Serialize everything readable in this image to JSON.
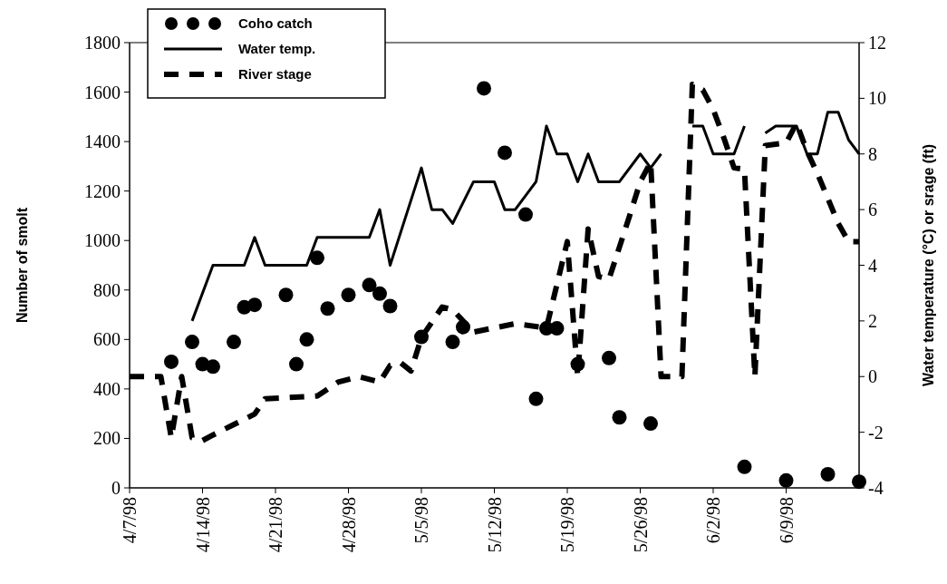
{
  "chart_data": {
    "type": "line",
    "ylabel": "Number of smolt",
    "y2label": "Water temperature (°C) or srage (ft)",
    "xlim": [
      "1998-04-07",
      "1998-06-16"
    ],
    "xticks": [
      {
        "value": "1998-04-07",
        "label": "4/7/98"
      },
      {
        "value": "1998-04-14",
        "label": "4/14/98"
      },
      {
        "value": "1998-04-21",
        "label": "4/21/98"
      },
      {
        "value": "1998-04-28",
        "label": "4/28/98"
      },
      {
        "value": "1998-05-05",
        "label": "5/5/98"
      },
      {
        "value": "1998-05-12",
        "label": "5/12/98"
      },
      {
        "value": "1998-05-19",
        "label": "5/19/98"
      },
      {
        "value": "1998-05-26",
        "label": "5/26/98"
      },
      {
        "value": "1998-06-02",
        "label": "6/2/98"
      },
      {
        "value": "1998-06-09",
        "label": "6/9/98"
      }
    ],
    "ylim": [
      0,
      1800
    ],
    "yticks": [
      0,
      200,
      400,
      600,
      800,
      1000,
      1200,
      1400,
      1600,
      1800
    ],
    "y2lim": [
      -4,
      12
    ],
    "y2ticks": [
      -4,
      -2,
      0,
      2,
      4,
      6,
      8,
      10,
      12
    ],
    "grid": false,
    "legend": "top left",
    "series": [
      {
        "name": "Coho catch",
        "type": "scatter",
        "marker": "circle",
        "color": "#000000",
        "x": [
          "1998-04-11",
          "1998-04-13",
          "1998-04-14",
          "1998-04-15",
          "1998-04-17",
          "1998-04-18",
          "1998-04-19",
          "1998-04-22",
          "1998-04-23",
          "1998-04-24",
          "1998-04-25",
          "1998-04-26",
          "1998-04-28",
          "1998-04-30",
          "1998-05-01",
          "1998-05-02",
          "1998-05-05",
          "1998-05-08",
          "1998-05-09",
          "1998-05-11",
          "1998-05-13",
          "1998-05-15",
          "1998-05-16",
          "1998-05-17",
          "1998-05-18",
          "1998-05-20",
          "1998-05-23",
          "1998-05-24",
          "1998-05-27",
          "1998-06-05",
          "1998-06-09",
          "1998-06-13",
          "1998-06-16"
        ],
        "values": [
          510,
          590,
          500,
          490,
          590,
          730,
          740,
          780,
          500,
          600,
          930,
          725,
          780,
          820,
          785,
          735,
          610,
          590,
          650,
          1615,
          1355,
          1105,
          360,
          645,
          645,
          500,
          525,
          285,
          260,
          85,
          30,
          55,
          25
        ]
      },
      {
        "name": "Water temp.",
        "axis": "y2",
        "line_style": "solid",
        "color": "#000000",
        "x": [
          "1998-04-13",
          "1998-04-15",
          "1998-04-18",
          "1998-04-19",
          "1998-04-20",
          "1998-04-24",
          "1998-04-25",
          "1998-04-30",
          "1998-05-01",
          "1998-05-02",
          "1998-05-05",
          "1998-05-06",
          "1998-05-07",
          "1998-05-08",
          "1998-05-10",
          "1998-05-12",
          "1998-05-13",
          "1998-05-14",
          "1998-05-16",
          "1998-05-17",
          "1998-05-18",
          "1998-05-19",
          "1998-05-20",
          "1998-05-21",
          "1998-05-22",
          "1998-05-24",
          "1998-05-26",
          "1998-05-27",
          "1998-05-28",
          "1998-05-29",
          "1998-05-31",
          "1998-06-01",
          "1998-06-02",
          "1998-06-04",
          "1998-06-05",
          "1998-06-06",
          "1998-06-07",
          "1998-06-08",
          "1998-06-10",
          "1998-06-11",
          "1998-06-12",
          "1998-06-13",
          "1998-06-14",
          "1998-06-15",
          "1998-06-16"
        ],
        "values": [
          2,
          4,
          4,
          5,
          4,
          4,
          5,
          5,
          6,
          4,
          7.5,
          6,
          6,
          5.5,
          7,
          7,
          6,
          6,
          7,
          9,
          8,
          8,
          7,
          8,
          7,
          7,
          8,
          7.5,
          8,
          null,
          9,
          9,
          8,
          8,
          9,
          null,
          8.75,
          9,
          9,
          8,
          8,
          9.5,
          9.5,
          8.5,
          8
        ]
      },
      {
        "name": "River stage",
        "axis": "y2",
        "line_style": "dashed",
        "color": "#000000",
        "x": [
          "1998-04-07",
          "1998-04-10",
          "1998-04-11",
          "1998-04-12",
          "1998-04-13",
          "1998-04-14",
          "1998-04-15",
          "1998-04-19",
          "1998-04-20",
          "1998-04-25",
          "1998-04-27",
          "1998-04-29",
          "1998-05-01",
          "1998-05-02",
          "1998-05-03",
          "1998-05-04",
          "1998-05-05",
          "1998-05-07",
          "1998-05-08",
          "1998-05-10",
          "1998-05-12",
          "1998-05-14",
          "1998-05-17",
          "1998-05-19",
          "1998-05-20",
          "1998-05-21",
          "1998-05-22",
          "1998-05-23",
          "1998-05-25",
          "1998-05-26",
          "1998-05-27",
          "1998-05-28",
          "1998-05-30",
          "1998-05-31",
          "1998-06-01",
          "1998-06-02",
          "1998-06-03",
          "1998-06-04",
          "1998-06-05",
          "1998-06-06",
          "1998-06-07",
          "1998-06-09",
          "1998-06-10",
          "1998-06-11",
          "1998-06-12",
          "1998-06-14",
          "1998-06-15",
          "1998-06-16"
        ],
        "values": [
          0,
          0,
          -2.2,
          0,
          -2.2,
          -2.3,
          -2.1,
          -1.35,
          -0.8,
          -0.7,
          -0.2,
          0,
          -0.2,
          0.4,
          0.5,
          0.2,
          1.4,
          2.5,
          2.4,
          1.6,
          1.75,
          1.9,
          1.75,
          4.85,
          0,
          5.3,
          3.6,
          3.5,
          5.8,
          7,
          7.7,
          0,
          0,
          10.5,
          10.3,
          9.6,
          8.6,
          7.5,
          7.45,
          0,
          8.3,
          8.4,
          9.1,
          8.1,
          7.3,
          5.5,
          4.85,
          4.85
        ]
      }
    ]
  }
}
